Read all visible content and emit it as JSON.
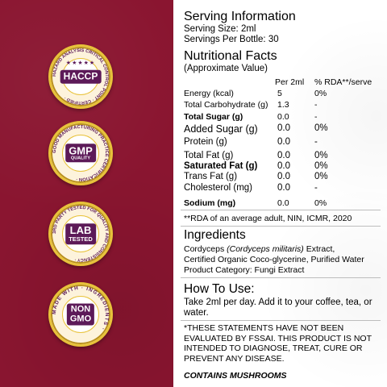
{
  "badges": [
    {
      "ring_text": "HAZARD ANALYSIS CRITICAL CONTROL POINT · CERTIFIED ·",
      "main": "HACCP",
      "stars": "★★★★★"
    },
    {
      "ring_text": "GOOD MANUFACTURING PRACTICE CERTIFICATION ·",
      "main": "GMP",
      "sub": "QUALITY"
    },
    {
      "ring_text": "3RD PARTY TESTED FOR QUALITY AND CONSISTENCY ·",
      "main": "LAB",
      "sub": "TESTED"
    },
    {
      "ring_text": "MADE WITH · INGREDIENTS ·",
      "main": "NON",
      "sub": "GMO"
    }
  ],
  "serving": {
    "title": "Serving Information",
    "size": "Serving Size: 2ml",
    "per_bottle": "Servings Per Bottle: 30"
  },
  "nutrition": {
    "title": "Nutritional Facts",
    "subtitle": "(Approximate Value)",
    "col_per": "Per 2ml",
    "col_rda": "% RDA**/serve",
    "rows": [
      {
        "label": "Energy (kcal)",
        "per": "5",
        "rda": "0%"
      },
      {
        "label": "Total Carbohydrate (g)",
        "per": "1.3",
        "rda": "-"
      },
      {
        "label": "Total Sugar (g)",
        "per": "0.0",
        "rda": "-"
      },
      {
        "label": "Added Sugar (g)",
        "per": "0.0",
        "rda": "0%"
      },
      {
        "label": "Protein (g)",
        "per": "0.0",
        "rda": "-"
      },
      {
        "label": "Total Fat (g)",
        "per": "0.0",
        "rda": "0%"
      },
      {
        "label": "Saturated Fat (g)",
        "per": "0.0",
        "rda": "0%"
      },
      {
        "label": "Trans Fat (g)",
        "per": "0.0",
        "rda": "0%"
      },
      {
        "label": "Cholesterol (mg)",
        "per": "0.0",
        "rda": "-"
      },
      {
        "label": "Sodium (mg)",
        "per": "0.0",
        "rda": "0%"
      }
    ],
    "footnote": "**RDA of an average adult, NIN, ICMR, 2020"
  },
  "ingredients": {
    "title": "Ingredients",
    "line1_a": "Cordyceps ",
    "line1_b": "(Cordyceps militaris)",
    "line1_c": " Extract,",
    "line2": "Certified Organic Coco-glycerine, Purified Water",
    "line3": "Product Category: Fungi Extract"
  },
  "how_to_use": {
    "title": "How To Use:",
    "text": "Take 2ml per day. Add it to your coffee, tea, or water."
  },
  "disclaimer": "*THESE STATEMENTS HAVE NOT BEEN EVALUATED BY FSSAI. THIS PRODUCT IS NOT INTENDED TO DIAGNOSE, TREAT, CURE OR PREVENT ANY DISEASE.",
  "contains": "CONTAINS MUSHROOMS",
  "colors": {
    "maroon": "#8a1530",
    "gold": "#e8c23a",
    "purple": "#5c1a58"
  }
}
